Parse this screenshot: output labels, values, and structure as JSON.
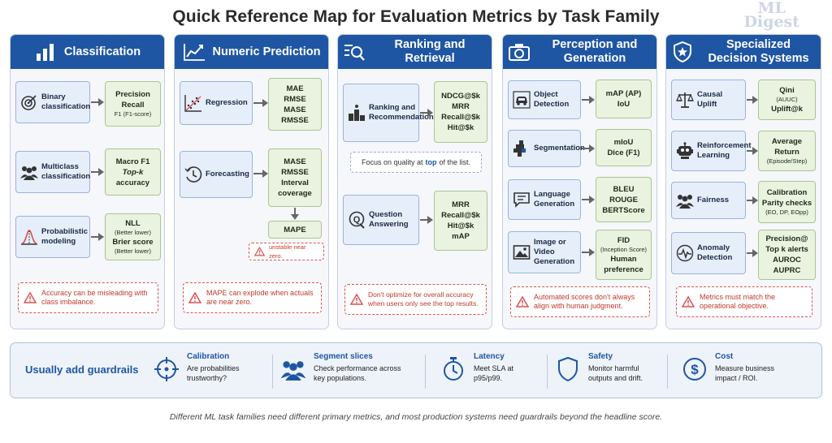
{
  "title": "Quick Reference Map for Evaluation Metrics by Task Family",
  "watermark": {
    "line1": "ML",
    "line2": "Digest"
  },
  "columns": [
    {
      "title": "Classification",
      "icon": "bar-chart-icon",
      "rows": [
        {
          "task": "Binary classification",
          "icon": "target-icon",
          "metrics": [
            "Precision",
            "Recall",
            "F1 (F1-score)"
          ]
        },
        {
          "task": "Multiclass classification",
          "icon": "people-group-icon",
          "metrics": [
            "Macro F1",
            "Top-k",
            "accuracy"
          ]
        },
        {
          "task": "Probabilistic modeling",
          "icon": "bell-curve-icon",
          "metrics": [
            "NLL",
            "(Better lower)",
            "Brier score",
            "(Better lower)"
          ]
        }
      ],
      "warning": "Accuracy can be misleading with class imbalance."
    },
    {
      "title": "Numeric Prediction",
      "icon": "line-chart-icon",
      "rows": [
        {
          "task": "Regression",
          "icon": "scatter-plot-icon",
          "metrics": [
            "MAE",
            "RMSE",
            "MASE",
            "RMSSE"
          ]
        },
        {
          "task": "Forecasting",
          "icon": "clock-icon",
          "metrics": [
            "MASE",
            "RMSSE",
            "Interval",
            "coverage"
          ],
          "extra_metric": "MAPE",
          "extra_warning": "unstable near zero."
        }
      ],
      "warning": "MAPE can explode when actuals are near zero."
    },
    {
      "title": "Ranking and Retrieval",
      "icon": "search-list-icon",
      "rows": [
        {
          "task": "Ranking and Recommendation",
          "icon": "podium-icon",
          "metrics": [
            "NDCG@$k",
            "MRR",
            "Recall@$k",
            "Hit@$k"
          ]
        },
        {
          "task": "Question Answering",
          "icon": "question-icon",
          "metrics": [
            "MRR",
            "Recall@$k",
            "Hit@$k",
            "mAP"
          ]
        }
      ],
      "note": {
        "before": "Focus on quality at ",
        "highlight": "top",
        "after": " of the list."
      },
      "warning": "Don't optimize for overall accuracy when users only see the top results."
    },
    {
      "title": "Perception and Generation",
      "icon": "camera-icon",
      "rows": [
        {
          "task": "Object Detection",
          "icon": "car-icon",
          "metrics": [
            "mAP (AP)",
            "IoU"
          ]
        },
        {
          "task": "Segmentation",
          "icon": "pixel-shape-icon",
          "metrics": [
            "mIoU",
            "Dice (F1)"
          ]
        },
        {
          "task": "Language Generation",
          "icon": "chat-bubble-icon",
          "metrics": [
            "BLEU",
            "ROUGE",
            "BERTScore"
          ]
        },
        {
          "task": "Image or Video Generation",
          "icon": "image-icon",
          "metrics": [
            "FID",
            "(Inception Score)",
            "Human",
            "preference"
          ]
        }
      ],
      "warning": "Automated scores don't always align with human judgment."
    },
    {
      "title": "Specialized Decision Systems",
      "icon": "shield-star-icon",
      "rows": [
        {
          "task": "Causal Uplift",
          "icon": "scales-icon",
          "metrics": [
            "Qini",
            "(AUUC)",
            "Uplift@k"
          ]
        },
        {
          "task": "Reinforcement Learning",
          "icon": "robot-icon",
          "metrics": [
            "Average",
            "Return",
            "(Episode/Step)"
          ]
        },
        {
          "task": "Fairness",
          "icon": "people-group-icon",
          "metrics": [
            "Calibration",
            "Parity checks",
            "(EO, DP, EOpp)"
          ]
        },
        {
          "task": "Anomaly Detection",
          "icon": "pulse-icon",
          "metrics": [
            "Precision@",
            "Top k alerts",
            "AUROC",
            "AUPRC"
          ]
        }
      ],
      "warning": "Metrics must match the operational objective."
    }
  ],
  "guardrails": {
    "title": "Usually add guardrails",
    "items": [
      {
        "name": "Calibration",
        "icon": "crosshair-icon",
        "desc": [
          "Are probabilities",
          "trustworthy?"
        ]
      },
      {
        "name": "Segment slices",
        "icon": "people-group-icon",
        "desc": [
          "Check performance across",
          "key populations."
        ]
      },
      {
        "name": "Latency",
        "icon": "stopwatch-icon",
        "desc": [
          "Meet SLA at",
          "p95/p99."
        ]
      },
      {
        "name": "Safety",
        "icon": "shield-icon",
        "desc": [
          "Monitor harmful",
          "outputs and drift."
        ]
      },
      {
        "name": "Cost",
        "icon": "dollar-coin-icon",
        "desc": [
          "Measure business",
          "impact / ROI."
        ]
      }
    ]
  },
  "caption": "Different ML task families need different primary metrics, and most production systems need guardrails beyond the headline score.",
  "colors": {
    "header_blue": "#1f56a3",
    "task_box": "#e6eefa",
    "metric_box": "#eaf3df",
    "warning_red": "#c0392b",
    "highlight_blue": "#1f56a3"
  }
}
